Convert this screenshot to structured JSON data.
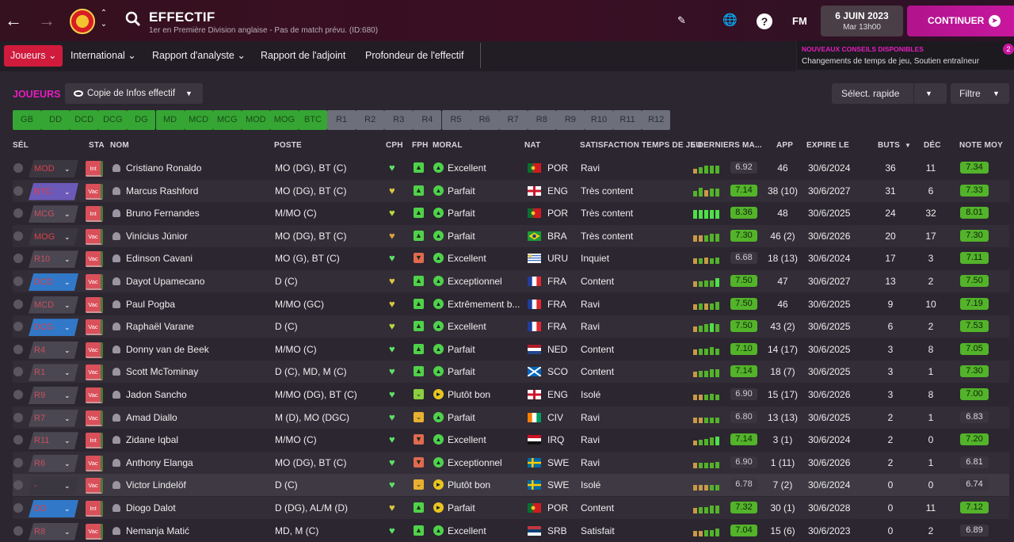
{
  "header": {
    "title": "EFFECTIF",
    "subtitle": "1er en Première Division anglaise - Pas de match prévu. (ID:680)",
    "fm_label": "FM",
    "help_label": "?",
    "date": "6 JUIN 2023",
    "time": "Mar 13h00",
    "continue_label": "CONTINUER"
  },
  "menu": {
    "items": [
      "Joueurs",
      "International",
      "Rapport d'analyste",
      "Rapport de l'adjoint",
      "Profondeur de l'effectif"
    ]
  },
  "tips": {
    "title": "NOUVEAUX CONSEILS DISPONIBLES",
    "text": "Changements de temps de jeu, Soutien entraîneur",
    "count": "2"
  },
  "toolbar": {
    "section_label": "JOUEURS",
    "copy_view": "Copie de Infos effectif",
    "quick_select": "Sélect. rapide",
    "filter": "Filtre"
  },
  "positions": [
    {
      "label": "GB",
      "filled": true
    },
    {
      "label": "DD",
      "filled": true
    },
    {
      "label": "DCD",
      "filled": true
    },
    {
      "label": "DCG",
      "filled": true
    },
    {
      "label": "DG",
      "filled": true
    },
    {
      "label": "MD",
      "filled": true
    },
    {
      "label": "MCD",
      "filled": true
    },
    {
      "label": "MCG",
      "filled": true
    },
    {
      "label": "MOD",
      "filled": true
    },
    {
      "label": "MOG",
      "filled": true
    },
    {
      "label": "BTC",
      "filled": true
    },
    {
      "label": "R1",
      "filled": false
    },
    {
      "label": "R2",
      "filled": false
    },
    {
      "label": "R3",
      "filled": false
    },
    {
      "label": "R4",
      "filled": false
    },
    {
      "label": "R5",
      "filled": false
    },
    {
      "label": "R6",
      "filled": false
    },
    {
      "label": "R7",
      "filled": false
    },
    {
      "label": "R8",
      "filled": false
    },
    {
      "label": "R9",
      "filled": false
    },
    {
      "label": "R10",
      "filled": false
    },
    {
      "label": "R11",
      "filled": false
    },
    {
      "label": "R12",
      "filled": false
    }
  ],
  "columns": {
    "sel": "SÉL",
    "sta": "STA",
    "nom": "NOM",
    "poste": "POSTE",
    "cph": "CPH",
    "fph": "FPH",
    "moral": "MORAL",
    "nat": "NAT",
    "satis": "SATISFACTION TEMPS DE JEU",
    "form": "5 DERNIERS MA...",
    "app": "APP",
    "exp": "EXPIRE LE",
    "buts": "BUTS",
    "dec": "DÉC",
    "note": "NOTE MOY"
  },
  "colors": {
    "accent": "#e61dbf",
    "filled_slot": "#35a534",
    "red": "#d11b3c"
  },
  "players": [
    {
      "slot": "MOD",
      "slot_style": "dk",
      "sta": "Int",
      "name": "Cristiano Ronaldo",
      "poste": "MO (DG), BT (C)",
      "cph": "#5ee06a",
      "fph": "#4fd24a",
      "moral": "Excellent",
      "moral_c": "#4fd24a",
      "flag": "POR",
      "nat": "POR",
      "satis": "Ravi",
      "bars": [
        0.5,
        0.7,
        0.8,
        0.8,
        0.8
      ],
      "barc": [
        "#c89a48",
        "#53b32a",
        "#53b32a",
        "#53b32a",
        "#53b32a"
      ],
      "form": "6.92",
      "form_g": false,
      "app": "46",
      "exp": "30/6/2024",
      "buts": "36",
      "dec": "11",
      "note": "7.34"
    },
    {
      "slot": "BTC",
      "slot_style": "purple",
      "sta": "Vac",
      "name": "Marcus Rashford",
      "poste": "MO (DG), BT (C)",
      "cph": "#d8c640",
      "fph": "#4fd24a",
      "moral": "Parfait",
      "moral_c": "#4fd24a",
      "flag": "ENG",
      "nat": "ENG",
      "satis": "Très content",
      "bars": [
        0.6,
        0.9,
        0.7,
        0.8,
        0.8
      ],
      "barc": [
        "#53b32a",
        "#53b32a",
        "#c89a48",
        "#53b32a",
        "#53b32a"
      ],
      "form": "7.14",
      "form_g": true,
      "app": "38 (10)",
      "exp": "30/6/2027",
      "buts": "31",
      "dec": "6",
      "note": "7.33"
    },
    {
      "slot": "MCG",
      "slot_style": "",
      "sta": "Int",
      "name": "Bruno Fernandes",
      "poste": "M/MO (C)",
      "cph": "#b8d840",
      "fph": "#4fd24a",
      "moral": "Parfait",
      "moral_c": "#4fd24a",
      "flag": "POR",
      "nat": "POR",
      "satis": "Très content",
      "bars": [
        0.9,
        0.9,
        0.9,
        0.9,
        0.9
      ],
      "barc": [
        "#4fe04a",
        "#4fe04a",
        "#4fe04a",
        "#4fe04a",
        "#4fe04a"
      ],
      "form": "8.36",
      "form_g": true,
      "app": "48",
      "exp": "30/6/2025",
      "buts": "24",
      "dec": "32",
      "note": "8.01"
    },
    {
      "slot": "MOG",
      "slot_style": "dk",
      "sta": "Vac",
      "name": "Vinícius Júnior",
      "poste": "MO (DG), BT (C)",
      "cph": "#d8a040",
      "fph": "#4fd24a",
      "moral": "Parfait",
      "moral_c": "#4fd24a",
      "flag": "BRA",
      "nat": "BRA",
      "satis": "Très content",
      "bars": [
        0.7,
        0.7,
        0.7,
        0.8,
        0.8
      ],
      "barc": [
        "#c89a48",
        "#c89a48",
        "#53b32a",
        "#53b32a",
        "#53b32a"
      ],
      "form": "7.30",
      "form_g": true,
      "app": "46 (2)",
      "exp": "30/6/2026",
      "buts": "20",
      "dec": "17",
      "note": "7.30"
    },
    {
      "slot": "R10",
      "slot_style": "",
      "sta": "Vac",
      "name": "Edinson Cavani",
      "poste": "MO (G), BT (C)",
      "cph": "#5ee06a",
      "fph": "#e06a50",
      "moral": "Excellent",
      "moral_c": "#4fd24a",
      "flag": "URU",
      "nat": "URU",
      "satis": "Inquiet",
      "bars": [
        0.6,
        0.6,
        0.7,
        0.6,
        0.7
      ],
      "barc": [
        "#c89a48",
        "#53b32a",
        "#c89a48",
        "#53b32a",
        "#53b32a"
      ],
      "form": "6.68",
      "form_g": false,
      "app": "18 (13)",
      "exp": "30/6/2024",
      "buts": "17",
      "dec": "3",
      "note": "7.11"
    },
    {
      "slot": "DCD",
      "slot_style": "blue",
      "sta": "Vac",
      "name": "Dayot Upamecano",
      "poste": "D (C)",
      "cph": "#d8c640",
      "fph": "#4fd24a",
      "moral": "Exceptionnel",
      "moral_c": "#4fd24a",
      "flag": "FRA",
      "nat": "FRA",
      "satis": "Content",
      "bars": [
        0.6,
        0.6,
        0.7,
        0.7,
        0.9
      ],
      "barc": [
        "#c89a48",
        "#53b32a",
        "#53b32a",
        "#53b32a",
        "#4fe04a"
      ],
      "form": "7.50",
      "form_g": true,
      "app": "47",
      "exp": "30/6/2027",
      "buts": "13",
      "dec": "2",
      "note": "7.50"
    },
    {
      "slot": "MCD",
      "slot_style": "",
      "sta": "Vac",
      "name": "Paul Pogba",
      "poste": "M/MO (GC)",
      "cph": "#d8c640",
      "fph": "#4fd24a",
      "moral": "Extrêmement b...",
      "moral_c": "#4fd24a",
      "flag": "FRA",
      "nat": "FRA",
      "satis": "Ravi",
      "bars": [
        0.6,
        0.7,
        0.7,
        0.7,
        0.8
      ],
      "barc": [
        "#c89a48",
        "#53b32a",
        "#c89a48",
        "#53b32a",
        "#53b32a"
      ],
      "form": "7.50",
      "form_g": true,
      "app": "46",
      "exp": "30/6/2025",
      "buts": "9",
      "dec": "10",
      "note": "7.19"
    },
    {
      "slot": "DCG",
      "slot_style": "blue",
      "sta": "Vac",
      "name": "Raphaël Varane",
      "poste": "D (C)",
      "cph": "#b8d840",
      "fph": "#4fd24a",
      "moral": "Excellent",
      "moral_c": "#4fd24a",
      "flag": "FRA",
      "nat": "FRA",
      "satis": "Ravi",
      "bars": [
        0.6,
        0.7,
        0.8,
        0.9,
        0.8
      ],
      "barc": [
        "#c89a48",
        "#53b32a",
        "#53b32a",
        "#4fe04a",
        "#53b32a"
      ],
      "form": "7.50",
      "form_g": true,
      "app": "43 (2)",
      "exp": "30/6/2025",
      "buts": "6",
      "dec": "2",
      "note": "7.53"
    },
    {
      "slot": "R4",
      "slot_style": "",
      "sta": "Vac",
      "name": "Donny van de Beek",
      "poste": "M/MO (C)",
      "cph": "#5ee06a",
      "fph": "#4fd24a",
      "moral": "Parfait",
      "moral_c": "#4fd24a",
      "flag": "NED",
      "nat": "NED",
      "satis": "Content",
      "bars": [
        0.6,
        0.7,
        0.7,
        0.8,
        0.7
      ],
      "barc": [
        "#c89a48",
        "#53b32a",
        "#53b32a",
        "#53b32a",
        "#53b32a"
      ],
      "form": "7.10",
      "form_g": true,
      "app": "14 (17)",
      "exp": "30/6/2025",
      "buts": "3",
      "dec": "8",
      "note": "7.05"
    },
    {
      "slot": "R1",
      "slot_style": "",
      "sta": "Vac",
      "name": "Scott McTominay",
      "poste": "D (C), MD, M (C)",
      "cph": "#5ee06a",
      "fph": "#4fd24a",
      "moral": "Parfait",
      "moral_c": "#4fd24a",
      "flag": "SCO",
      "nat": "SCO",
      "satis": "Content",
      "bars": [
        0.6,
        0.7,
        0.7,
        0.8,
        0.8
      ],
      "barc": [
        "#c89a48",
        "#53b32a",
        "#53b32a",
        "#53b32a",
        "#53b32a"
      ],
      "form": "7.14",
      "form_g": true,
      "app": "18 (7)",
      "exp": "30/6/2025",
      "buts": "3",
      "dec": "1",
      "note": "7.30"
    },
    {
      "slot": "R9",
      "slot_style": "",
      "sta": "Vac",
      "name": "Jadon Sancho",
      "poste": "M/MO (DG), BT (C)",
      "cph": "#5ee06a",
      "fph": "#8ad040",
      "moral": "Plutôt bon",
      "moral_c": "#e8c520",
      "flag": "ENG",
      "nat": "ENG",
      "satis": "Isolé",
      "bars": [
        0.6,
        0.6,
        0.6,
        0.7,
        0.6
      ],
      "barc": [
        "#c89a48",
        "#c89a48",
        "#53b32a",
        "#53b32a",
        "#53b32a"
      ],
      "form": "6.90",
      "form_g": false,
      "app": "15 (17)",
      "exp": "30/6/2026",
      "buts": "3",
      "dec": "8",
      "note": "7.00"
    },
    {
      "slot": "R7",
      "slot_style": "",
      "sta": "Vac",
      "name": "Amad Diallo",
      "poste": "M (D), MO (DGC)",
      "cph": "#5ee06a",
      "fph": "#e8b030",
      "moral": "Parfait",
      "moral_c": "#4fd24a",
      "flag": "CIV",
      "nat": "CIV",
      "satis": "Ravi",
      "bars": [
        0.6,
        0.6,
        0.6,
        0.6,
        0.6
      ],
      "barc": [
        "#c89a48",
        "#c89a48",
        "#53b32a",
        "#53b32a",
        "#53b32a"
      ],
      "form": "6.80",
      "form_g": false,
      "app": "13 (13)",
      "exp": "30/6/2025",
      "buts": "2",
      "dec": "1",
      "note": "6.83"
    },
    {
      "slot": "R11",
      "slot_style": "",
      "sta": "Int",
      "name": "Zidane Iqbal",
      "poste": "M/MO (C)",
      "cph": "#5ee06a",
      "fph": "#e06a50",
      "moral": "Excellent",
      "moral_c": "#4fd24a",
      "flag": "IRQ",
      "nat": "IRQ",
      "satis": "Ravi",
      "bars": [
        0.5,
        0.6,
        0.7,
        0.8,
        0.9
      ],
      "barc": [
        "#c89a48",
        "#53b32a",
        "#53b32a",
        "#53b32a",
        "#4fe04a"
      ],
      "form": "7.14",
      "form_g": true,
      "app": "3 (1)",
      "exp": "30/6/2024",
      "buts": "2",
      "dec": "0",
      "note": "7.20"
    },
    {
      "slot": "R6",
      "slot_style": "",
      "sta": "Vac",
      "name": "Anthony Elanga",
      "poste": "MO (DG), BT (C)",
      "cph": "#5ee06a",
      "fph": "#e06a50",
      "moral": "Exceptionnel",
      "moral_c": "#4fd24a",
      "flag": "SWE",
      "nat": "SWE",
      "satis": "Ravi",
      "bars": [
        0.6,
        0.6,
        0.6,
        0.6,
        0.7
      ],
      "barc": [
        "#c89a48",
        "#53b32a",
        "#53b32a",
        "#53b32a",
        "#53b32a"
      ],
      "form": "6.90",
      "form_g": false,
      "app": "1 (11)",
      "exp": "30/6/2026",
      "buts": "2",
      "dec": "1",
      "note": "6.81"
    },
    {
      "slot": "-",
      "slot_style": "dk",
      "sta": "Vac",
      "name": "Victor Lindelöf",
      "poste": "D (C)",
      "cph": "#5ee06a",
      "fph": "#e8b030",
      "moral": "Plutôt bon",
      "moral_c": "#e8c520",
      "flag": "SWE",
      "nat": "SWE",
      "satis": "Isolé",
      "bars": [
        0.6,
        0.6,
        0.6,
        0.6,
        0.6
      ],
      "barc": [
        "#c89a48",
        "#c89a48",
        "#c89a48",
        "#53b32a",
        "#53b32a"
      ],
      "form": "6.78",
      "form_g": false,
      "app": "7 (2)",
      "exp": "30/6/2024",
      "buts": "0",
      "dec": "0",
      "note": "6.74"
    },
    {
      "slot": "DD",
      "slot_style": "blue",
      "sta": "Int",
      "name": "Diogo Dalot",
      "poste": "D (DG), AL/M (D)",
      "cph": "#d8c640",
      "fph": "#4fd24a",
      "moral": "Parfait",
      "moral_c": "#e8c520",
      "flag": "POR",
      "nat": "POR",
      "satis": "Content",
      "bars": [
        0.6,
        0.7,
        0.7,
        0.8,
        0.8
      ],
      "barc": [
        "#c89a48",
        "#53b32a",
        "#53b32a",
        "#53b32a",
        "#53b32a"
      ],
      "form": "7.32",
      "form_g": true,
      "app": "30 (1)",
      "exp": "30/6/2028",
      "buts": "0",
      "dec": "11",
      "note": "7.12"
    },
    {
      "slot": "R8",
      "slot_style": "",
      "sta": "Vac",
      "name": "Nemanja Matić",
      "poste": "MD, M (C)",
      "cph": "#5ee06a",
      "fph": "#4fd24a",
      "moral": "Excellent",
      "moral_c": "#4fd24a",
      "flag": "SRB",
      "nat": "SRB",
      "satis": "Satisfait",
      "bars": [
        0.6,
        0.6,
        0.7,
        0.7,
        0.8
      ],
      "barc": [
        "#c89a48",
        "#c89a48",
        "#53b32a",
        "#53b32a",
        "#53b32a"
      ],
      "form": "7.04",
      "form_g": true,
      "app": "15 (6)",
      "exp": "30/6/2023",
      "buts": "0",
      "dec": "2",
      "note": "6.89"
    }
  ]
}
